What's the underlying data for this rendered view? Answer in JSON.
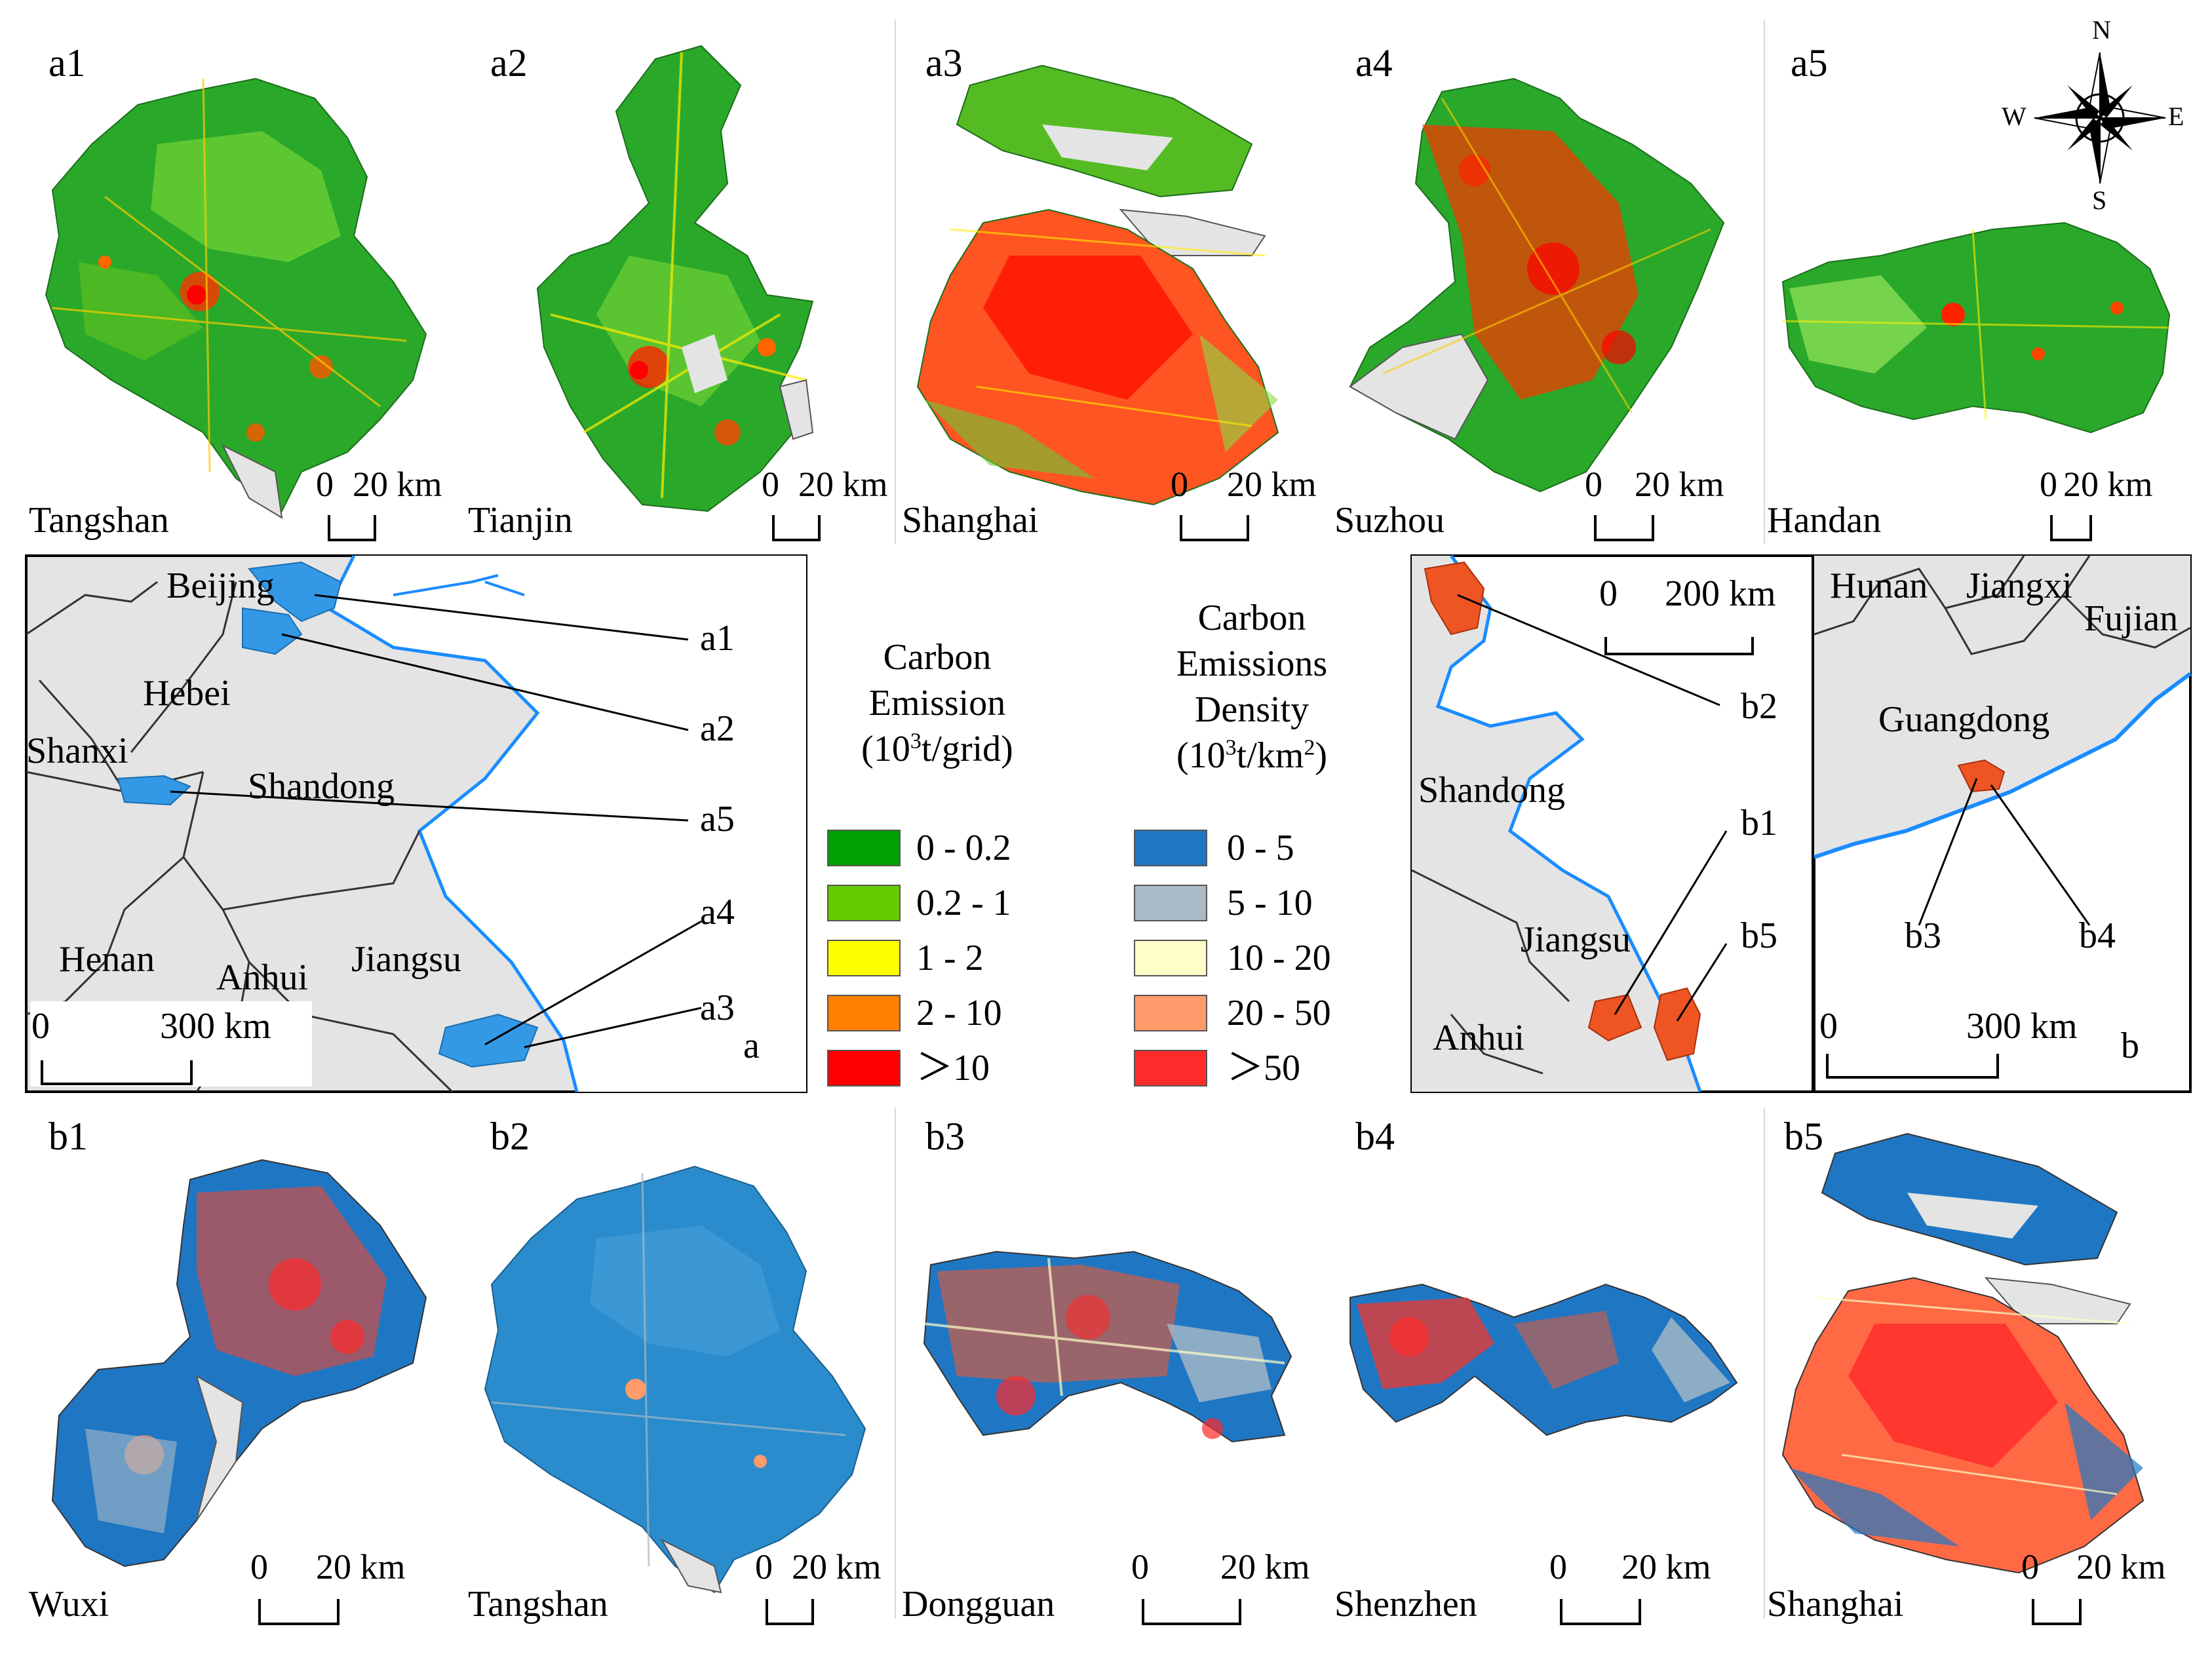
{
  "colors": {
    "ce_0": "#00a000",
    "ce_1": "#66cc00",
    "ce_2": "#ffff00",
    "ce_3": "#ff8000",
    "ce_4": "#ff0000",
    "cd_0": "#1f77c4",
    "cd_1": "#a9b9c6",
    "cd_2": "#ffffc8",
    "cd_3": "#ff9a6a",
    "cd_4": "#ff2a2a",
    "land": "#e4e4e4",
    "water": "#1a8cff",
    "highlight_a": "#3399e6",
    "highlight_b": "#ee5522"
  },
  "top_panels": [
    {
      "id": "a1",
      "city": "Tangshan",
      "scale_zero": "0",
      "scale_text": "20 km"
    },
    {
      "id": "a2",
      "city": "Tianjin",
      "scale_zero": "0",
      "scale_text": "20 km"
    },
    {
      "id": "a3",
      "city": "Shanghai",
      "scale_zero": "0",
      "scale_text": "20 km"
    },
    {
      "id": "a4",
      "city": "Suzhou",
      "scale_zero": "0",
      "scale_text": "20 km"
    },
    {
      "id": "a5",
      "city": "Handan",
      "scale_zero": "0",
      "scale_text": "20 km"
    }
  ],
  "bottom_panels": [
    {
      "id": "b1",
      "city": "Wuxi",
      "scale_zero": "0",
      "scale_text": "20 km"
    },
    {
      "id": "b2",
      "city": "Tangshan",
      "scale_zero": "0",
      "scale_text": "20 km"
    },
    {
      "id": "b3",
      "city": "Dongguan",
      "scale_zero": "0",
      "scale_text": "20 km"
    },
    {
      "id": "b4",
      "city": "Shenzhen",
      "scale_zero": "0",
      "scale_text": "20 km"
    },
    {
      "id": "b5",
      "city": "Shanghai",
      "scale_zero": "0",
      "scale_text": "20 km"
    }
  ],
  "compass": {
    "n": "N",
    "s": "S",
    "e": "E",
    "w": "W"
  },
  "map_a": {
    "panel_label": "a",
    "provinces": [
      "Beijing",
      "Hebei",
      "Shanxi",
      "Shandong",
      "Henan",
      "Anhui",
      "Jiangsu"
    ],
    "callouts": [
      "a1",
      "a2",
      "a5",
      "a4",
      "a3"
    ],
    "scale_zero": "0",
    "scale_text": "300 km"
  },
  "legend_emission": {
    "title_line1": "Carbon",
    "title_line2": "Emission",
    "title_unit_pre": "(10",
    "title_unit_sup": "3",
    "title_unit_post": "t/grid)",
    "classes": [
      "0 - 0.2",
      "0.2 - 1",
      "1 - 2",
      "2 - 10",
      "＞10"
    ]
  },
  "legend_density": {
    "title_line1": "Carbon",
    "title_line2": "Emissions",
    "title_line3": "Density",
    "title_unit_pre": "(10",
    "title_unit_sup": "3",
    "title_unit_mid": "t/km",
    "title_unit_sup2": "2",
    "title_unit_post": ")",
    "classes": [
      "0 - 5",
      "5 - 10",
      "10 - 20",
      "20 - 50",
      "＞50"
    ]
  },
  "map_b1": {
    "provinces": [
      "Shandong",
      "Jiangsu",
      "Anhui"
    ],
    "callouts": [
      "b2",
      "b1",
      "b5"
    ],
    "scale_zero": "0",
    "scale_text": "200 km"
  },
  "map_b2": {
    "panel_label": "b",
    "provinces": [
      "Hunan",
      "Jiangxi",
      "Fujian",
      "Guangdong"
    ],
    "callouts": [
      "b3",
      "b4"
    ],
    "scale_zero": "0",
    "scale_text": "300 km"
  }
}
